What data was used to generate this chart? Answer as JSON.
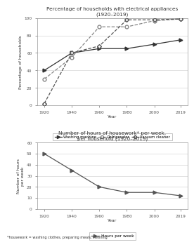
{
  "years": [
    1920,
    1940,
    1960,
    1980,
    2000,
    2019
  ],
  "washing_machine": [
    40,
    60,
    65,
    65,
    70,
    75
  ],
  "refrigerator": [
    30,
    55,
    90,
    90,
    97,
    99
  ],
  "vacuum_cleaner": [
    2,
    60,
    68,
    98,
    98,
    99
  ],
  "hours_per_week": [
    50,
    35,
    20,
    15,
    15,
    12
  ],
  "chart1_title": "Percentage of households with electrical appliances\n(1920–2019)",
  "chart2_title": "Number of hours of housework* per week,\nper household (1920–2019)",
  "chart1_ylabel": "Percentage of households",
  "chart2_ylabel": "Number of hours\nper week",
  "xlabel": "Year",
  "footnote": "*housework = washing clothes, preparing meals, cleaning",
  "legend1": [
    "Washing machine",
    "Refrigerator",
    "Vacuum cleaner"
  ],
  "legend2": [
    "Hours per week"
  ],
  "ylim1": [
    0,
    100
  ],
  "ylim2": [
    0,
    60
  ],
  "yticks1": [
    0,
    20,
    40,
    60,
    80,
    100
  ],
  "yticks2": [
    0,
    10,
    20,
    30,
    40,
    50,
    60
  ],
  "bg_color": "#ffffff",
  "line_color_wm": "#333333",
  "line_color_ref": "#888888",
  "line_color_vc": "#555555",
  "line_color_hours": "#555555"
}
